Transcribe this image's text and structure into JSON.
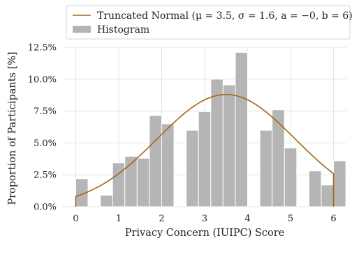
{
  "chart_data": {
    "type": "bar",
    "xlabel": "Privacy Concern (IUIPC) Score",
    "ylabel": "Proportion of Participants [%]",
    "xlim": [
      -0.3,
      6.3
    ],
    "ylim": [
      0,
      12.5
    ],
    "x_ticks": [
      {
        "value": 0,
        "label": "0"
      },
      {
        "value": 1,
        "label": "1"
      },
      {
        "value": 2,
        "label": "2"
      },
      {
        "value": 3,
        "label": "3"
      },
      {
        "value": 4,
        "label": "4"
      },
      {
        "value": 5,
        "label": "5"
      },
      {
        "value": 6,
        "label": "6"
      }
    ],
    "y_ticks": [
      {
        "value": 0,
        "label": "0.0%"
      },
      {
        "value": 2.5,
        "label": "2.5%"
      },
      {
        "value": 5,
        "label": "5.0%"
      },
      {
        "value": 7.5,
        "label": "7.5%"
      },
      {
        "value": 10,
        "label": "10.0%"
      },
      {
        "value": 12.5,
        "label": "12.5%"
      }
    ],
    "grid": true,
    "legend": {
      "placement": "top",
      "entries": [
        {
          "kind": "line",
          "text": "Truncated Normal (μ = 3.5, σ = 1.6, a = −0, b = 6)"
        },
        {
          "kind": "patch",
          "text": "Histogram"
        }
      ]
    },
    "histogram": {
      "name": "Histogram",
      "color": "#b5b5b5",
      "bin_width": 0.3333,
      "bins": [
        {
          "x": 0.0,
          "value": 2.2
        },
        {
          "x": 0.6667,
          "value": 0.9
        },
        {
          "x": 1.0,
          "value": 3.45
        },
        {
          "x": 1.3333,
          "value": 3.95
        },
        {
          "x": 1.6667,
          "value": 3.8
        },
        {
          "x": 2.0,
          "value": 7.15
        },
        {
          "x": 2.3333,
          "value": 6.5
        },
        {
          "x": 3.0,
          "value": 6.0
        },
        {
          "x": 3.3333,
          "value": 7.45
        },
        {
          "x": 3.6667,
          "value": 10.0
        },
        {
          "x": 4.0,
          "value": 9.55
        },
        {
          "x": 4.3333,
          "value": 12.1
        },
        {
          "x": 5.0,
          "value": 6.0
        },
        {
          "x": 5.3333,
          "value": 7.6
        },
        {
          "x": 5.6667,
          "value": 4.6
        },
        {
          "x": 6.3333,
          "value": 2.8
        },
        {
          "x": 6.6667,
          "value": 1.7
        },
        {
          "x": 7.0,
          "value": 3.6
        }
      ]
    },
    "curve": {
      "name": "Truncated Normal (μ = 3.5, σ = 1.6, a = −0, b = 6)",
      "color": "#a3651a",
      "mu": 3.5,
      "sigma": 1.6,
      "a": 0,
      "b": 6
    }
  }
}
